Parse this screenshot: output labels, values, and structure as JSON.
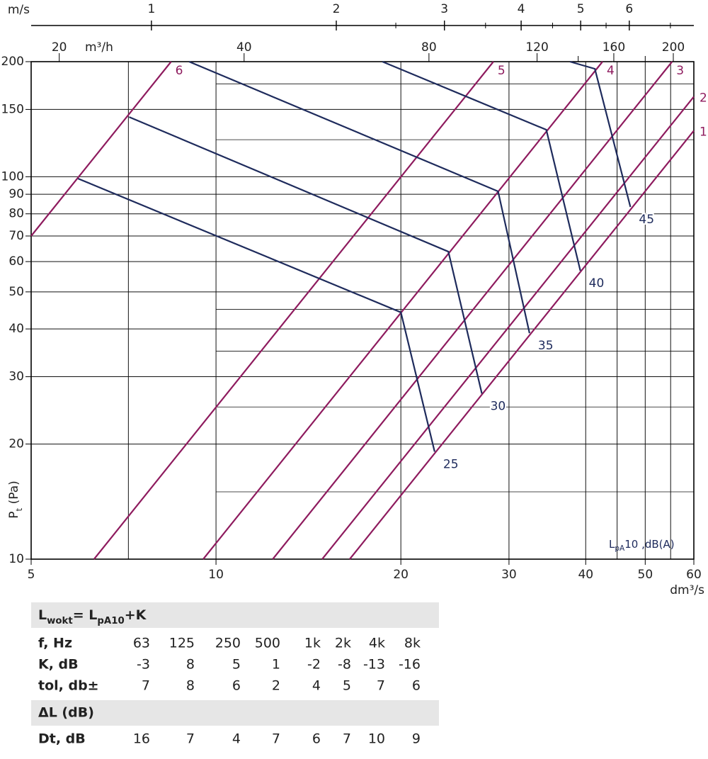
{
  "chart_data": {
    "type": "line",
    "xlim": [
      5,
      60
    ],
    "ylim": [
      10,
      200
    ],
    "log_x": true,
    "log_y": true,
    "grid": true,
    "xticks": [
      5,
      10,
      20,
      30,
      40,
      50,
      60
    ],
    "xgrid": [
      7.2,
      10,
      20,
      30,
      40,
      45,
      50,
      55,
      60
    ],
    "yticks": [
      10,
      20,
      30,
      40,
      50,
      60,
      70,
      80,
      90,
      100,
      150,
      200
    ],
    "yminor": [
      15,
      25,
      35,
      45,
      125,
      175
    ],
    "yminor_xstart": 10,
    "x_label": "dm³/s",
    "y_label": [
      {
        "text": "P"
      },
      {
        "text": "t",
        "sub": true
      },
      {
        "text": " (Pa)"
      }
    ],
    "annotation": [
      {
        "text": "L"
      },
      {
        "text": "pA",
        "sub": true
      },
      {
        "text": "10 ,dB(A)"
      }
    ],
    "top_axes": [
      {
        "label": "m/s",
        "lim": [
          0.637,
          7.643
        ],
        "ticks": [
          1,
          2,
          3,
          4,
          5,
          6
        ],
        "minor": [
          2.5,
          3.5,
          4.5,
          5.5,
          7
        ]
      },
      {
        "label": "m³/h",
        "lim": [
          18,
          216
        ],
        "ticks": [
          20,
          40,
          80,
          120,
          160,
          200
        ],
        "minor": [
          140,
          180
        ]
      }
    ],
    "series": [
      {
        "name": "6",
        "color": "#8e1b5e",
        "x": [
          5,
          8.45
        ],
        "values": [
          70,
          200
        ]
      },
      {
        "name": "5",
        "color": "#8e1b5e",
        "x": [
          6.33,
          28.3
        ],
        "values": [
          10,
          200
        ]
      },
      {
        "name": "4",
        "color": "#8e1b5e",
        "x": [
          9.53,
          42.6
        ],
        "values": [
          10,
          200
        ]
      },
      {
        "name": "3",
        "color": "#8e1b5e",
        "x": [
          12.37,
          55.3
        ],
        "values": [
          10,
          200
        ]
      },
      {
        "name": "2",
        "color": "#8e1b5e",
        "x": [
          14.89,
          60
        ],
        "values": [
          10,
          162
        ]
      },
      {
        "name": "1",
        "color": "#8e1b5e",
        "x": [
          16.51,
          60
        ],
        "values": [
          10,
          132
        ]
      },
      {
        "name": "25",
        "color": "#1e2b5c",
        "x": [
          5.96,
          20,
          22.7
        ],
        "values": [
          98.9,
          44.2,
          19.1
        ]
      },
      {
        "name": "30",
        "color": "#1e2b5c",
        "x": [
          7.22,
          23.9,
          27.1
        ],
        "values": [
          143.3,
          63.7,
          27.1
        ]
      },
      {
        "name": "35",
        "color": "#1e2b5c",
        "x": [
          9.04,
          28.8,
          32.4
        ],
        "values": [
          200,
          91.6,
          39.0
        ]
      },
      {
        "name": "40",
        "color": "#1e2b5c",
        "x": [
          18.66,
          34.5,
          39.2
        ],
        "values": [
          200,
          132.7,
          56.8
        ]
      },
      {
        "name": "45",
        "color": "#1e2b5c",
        "x": [
          37.7,
          41.4,
          47.3
        ],
        "values": [
          200,
          191.6,
          83.4
        ]
      }
    ]
  },
  "table": {
    "title": [
      {
        "text": "L"
      },
      {
        "text": "wokt",
        "sub": true
      },
      {
        "text": "= L"
      },
      {
        "text": "pA10",
        "sub": true
      },
      {
        "text": "+K"
      }
    ],
    "rows": [
      [
        "f, Hz",
        63,
        125,
        250,
        500,
        "1k",
        "2k",
        "4k",
        "8k"
      ],
      [
        "K, dB",
        -3,
        8,
        5,
        1,
        -2,
        -8,
        -13,
        -16
      ],
      [
        "tol, db±",
        7,
        8,
        6,
        2,
        4,
        5,
        7,
        6
      ]
    ],
    "section": "ΔL (dB)",
    "section_rows": [
      [
        "Dt, dB",
        16,
        7,
        4,
        7,
        6,
        7,
        10,
        9
      ]
    ]
  }
}
